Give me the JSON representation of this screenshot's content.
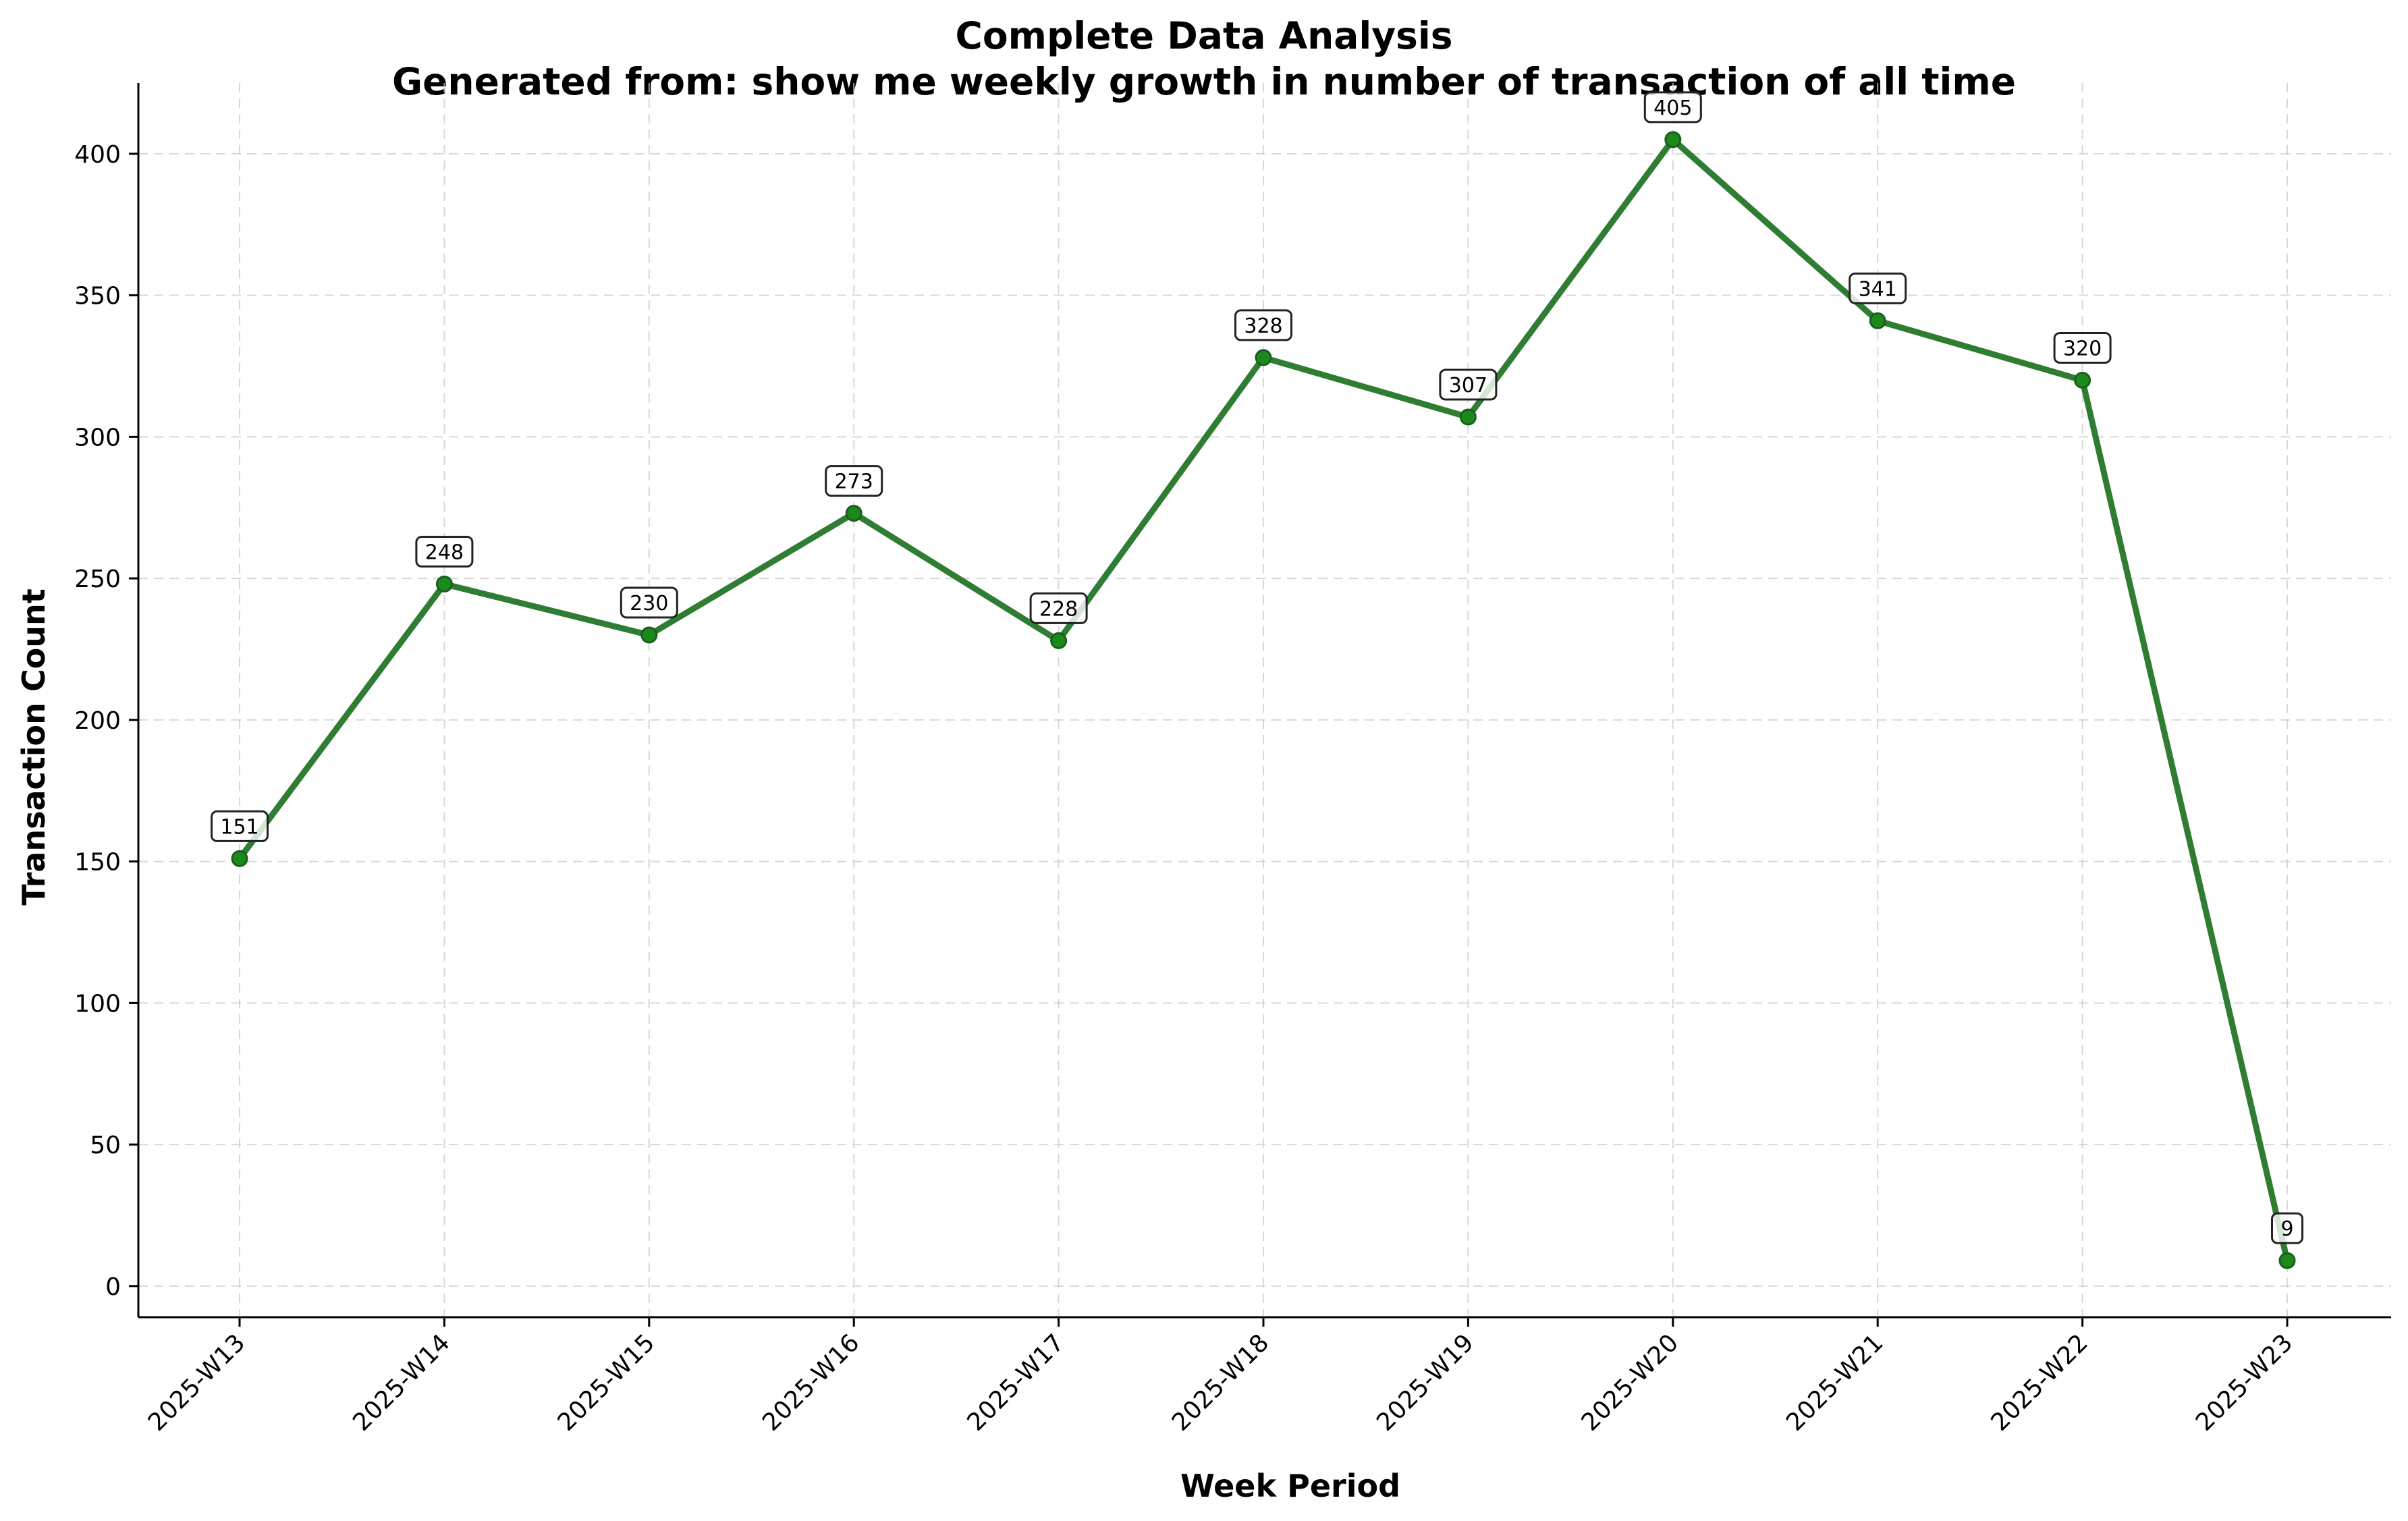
{
  "chart_data": {
    "type": "line",
    "title": "Complete Data Analysis",
    "subtitle": "Generated from: show me weekly growth in number of transaction of all time",
    "xlabel": "Week Period",
    "ylabel": "Transaction Count",
    "categories": [
      "2025-W13",
      "2025-W14",
      "2025-W15",
      "2025-W16",
      "2025-W17",
      "2025-W18",
      "2025-W19",
      "2025-W20",
      "2025-W21",
      "2025-W22",
      "2025-W23"
    ],
    "values": [
      151,
      248,
      230,
      273,
      228,
      328,
      307,
      405,
      341,
      320,
      9
    ],
    "ylim": [
      -11,
      425
    ],
    "yticks": [
      0,
      50,
      100,
      150,
      200,
      250,
      300,
      350,
      400
    ],
    "grid": true,
    "legend": "none",
    "colors": {
      "line": "#2e7d32",
      "marker": "#1b8a1b",
      "marker_edge": "#1b5e20"
    }
  }
}
